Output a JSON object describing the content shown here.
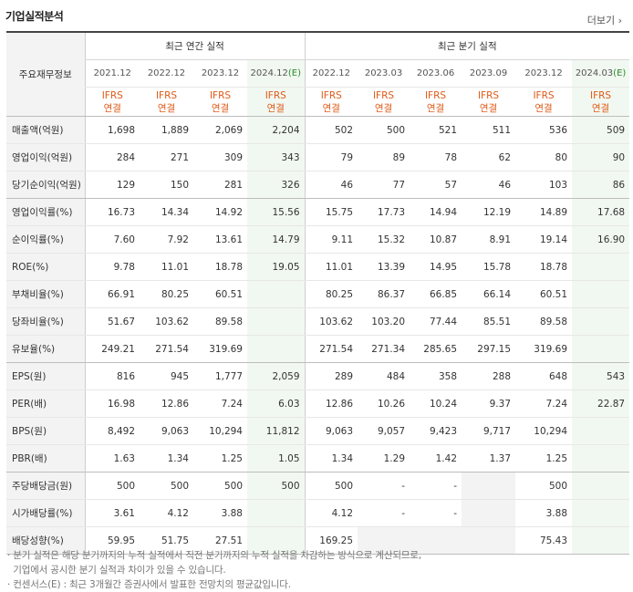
{
  "title": "기업실적분석",
  "more_label": "더보기",
  "row_header": "주요재무정보",
  "groups": {
    "annual": "최근 연간 실적",
    "quarterly": "최근 분기 실적"
  },
  "periods": [
    "2021.12",
    "2022.12",
    "2023.12",
    "2024.12",
    "2022.12",
    "2023.03",
    "2023.06",
    "2023.09",
    "2023.12",
    "2024.03"
  ],
  "estimate_mark": "(E)",
  "ifrs_line1": "IFRS",
  "ifrs_line2": "연결",
  "rows": [
    {
      "label": "매출액(억원)",
      "values": [
        "1,698",
        "1,889",
        "2,069",
        "2,204",
        "502",
        "500",
        "521",
        "511",
        "536",
        "509"
      ]
    },
    {
      "label": "영업이익(억원)",
      "values": [
        "284",
        "271",
        "309",
        "343",
        "79",
        "89",
        "78",
        "62",
        "80",
        "90"
      ]
    },
    {
      "label": "당기순이익(억원)",
      "values": [
        "129",
        "150",
        "281",
        "326",
        "46",
        "77",
        "57",
        "46",
        "103",
        "86"
      ]
    },
    {
      "label": "영업이익률(%)",
      "values": [
        "16.73",
        "14.34",
        "14.92",
        "15.56",
        "15.75",
        "17.73",
        "14.94",
        "12.19",
        "14.89",
        "17.68"
      ]
    },
    {
      "label": "순이익률(%)",
      "values": [
        "7.60",
        "7.92",
        "13.61",
        "14.79",
        "9.11",
        "15.32",
        "10.87",
        "8.91",
        "19.14",
        "16.90"
      ]
    },
    {
      "label": "ROE(%)",
      "values": [
        "9.78",
        "11.01",
        "18.78",
        "19.05",
        "11.01",
        "13.39",
        "14.95",
        "15.78",
        "18.78",
        ""
      ]
    },
    {
      "label": "부채비율(%)",
      "values": [
        "66.91",
        "80.25",
        "60.51",
        "",
        "80.25",
        "86.37",
        "66.85",
        "66.14",
        "60.51",
        ""
      ]
    },
    {
      "label": "당좌비율(%)",
      "values": [
        "51.67",
        "103.62",
        "89.58",
        "",
        "103.62",
        "103.20",
        "77.44",
        "85.51",
        "89.58",
        ""
      ]
    },
    {
      "label": "유보율(%)",
      "values": [
        "249.21",
        "271.54",
        "319.69",
        "",
        "271.54",
        "271.34",
        "285.65",
        "297.15",
        "319.69",
        ""
      ]
    },
    {
      "label": "EPS(원)",
      "values": [
        "816",
        "945",
        "1,777",
        "2,059",
        "289",
        "484",
        "358",
        "288",
        "648",
        "543"
      ]
    },
    {
      "label": "PER(배)",
      "values": [
        "16.98",
        "12.86",
        "7.24",
        "6.03",
        "12.86",
        "10.26",
        "10.24",
        "9.37",
        "7.24",
        "22.87"
      ]
    },
    {
      "label": "BPS(원)",
      "values": [
        "8,492",
        "9,063",
        "10,294",
        "11,812",
        "9,063",
        "9,057",
        "9,423",
        "9,717",
        "10,294",
        ""
      ]
    },
    {
      "label": "PBR(배)",
      "values": [
        "1.63",
        "1.34",
        "1.25",
        "1.05",
        "1.34",
        "1.29",
        "1.42",
        "1.37",
        "1.25",
        ""
      ]
    },
    {
      "label": "주당배당금(원)",
      "values": [
        "500",
        "500",
        "500",
        "500",
        "500",
        "-",
        "-",
        "",
        "500",
        ""
      ]
    },
    {
      "label": "시가배당률(%)",
      "values": [
        "3.61",
        "4.12",
        "3.88",
        "",
        "4.12",
        "-",
        "-",
        "",
        "3.88",
        ""
      ]
    },
    {
      "label": "배당성향(%)",
      "values": [
        "59.95",
        "51.75",
        "27.51",
        "",
        "169.25",
        "",
        "",
        "",
        "75.43",
        ""
      ]
    }
  ],
  "footnotes": [
    "· 분기 실적은 해당 분기까지의 누적 실적에서 직전 분기까지의 누적 실적을 차감하는 방식으로 계산되므로,",
    "  기업에서 공시한 분기 실적과 차이가 있을 수 있습니다.",
    "· 컨센서스(E) : 최근 3개월간 증권사에서 발표한 전망치의 평균값입니다."
  ]
}
